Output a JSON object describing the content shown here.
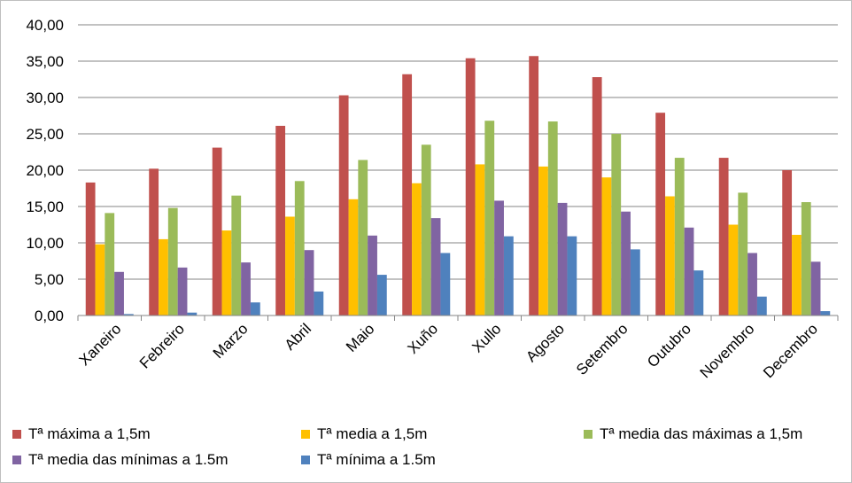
{
  "chart_data": {
    "type": "bar",
    "title": "",
    "xlabel": "",
    "ylabel": "",
    "ylim": [
      0,
      40
    ],
    "yticks": [
      "0,00",
      "5,00",
      "10,00",
      "15,00",
      "20,00",
      "25,00",
      "30,00",
      "35,00",
      "40,00"
    ],
    "grid": "horizontal",
    "legend_position": "bottom",
    "categories": [
      "Xaneiro",
      "Febreiro",
      "Marzo",
      "Abril",
      "Maio",
      "Xuño",
      "Xullo",
      "Agosto",
      "Setembro",
      "Outubro",
      "Novembro",
      "Decembro"
    ],
    "series": [
      {
        "name": "Tª máxima a 1,5m",
        "color": "#c0504d",
        "values": [
          18.3,
          20.2,
          23.1,
          26.1,
          30.3,
          33.2,
          35.4,
          35.7,
          32.8,
          27.9,
          21.7,
          20.0
        ]
      },
      {
        "name": "Tª media a 1,5m",
        "color": "#ffc000",
        "values": [
          9.8,
          10.5,
          11.7,
          13.6,
          16.0,
          18.2,
          20.8,
          20.5,
          19.0,
          16.4,
          12.5,
          11.1
        ]
      },
      {
        "name": "Tª media das máximas a 1,5m",
        "color": "#9bbb59",
        "values": [
          14.1,
          14.8,
          16.5,
          18.5,
          21.4,
          23.5,
          26.8,
          26.7,
          25.0,
          21.7,
          16.9,
          15.6
        ]
      },
      {
        "name": "Tª media das mínimas a 1.5m",
        "color": "#8064a2",
        "values": [
          6.0,
          6.6,
          7.3,
          9.0,
          11.0,
          13.4,
          15.8,
          15.5,
          14.3,
          12.1,
          8.6,
          7.4
        ]
      },
      {
        "name": "Tª mínima a 1.5m",
        "color": "#4f81bd",
        "values": [
          0.2,
          0.4,
          1.8,
          3.3,
          5.6,
          8.6,
          10.9,
          10.9,
          9.1,
          6.2,
          2.6,
          0.6
        ]
      }
    ]
  }
}
